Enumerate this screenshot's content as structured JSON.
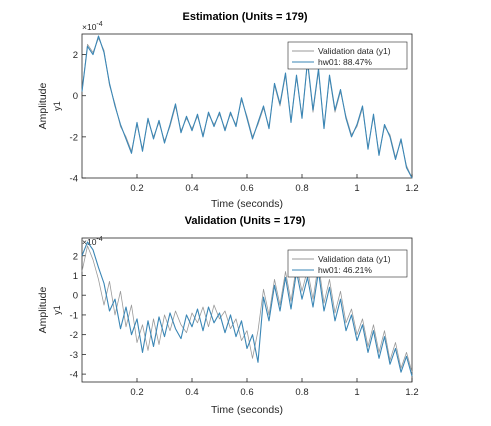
{
  "colors": {
    "validation": "#9a9a9a",
    "model": "#3a86b5",
    "axis": "#262626"
  },
  "chart_data": [
    {
      "type": "line",
      "title": "Estimation (Units = 179)",
      "xlabel": "Time (seconds)",
      "ylabel": "Amplitude",
      "ysublabel": "y1",
      "exponent_base": "×10",
      "exponent_power": "-4",
      "xlim": [
        0,
        1.2
      ],
      "ylim": [
        -4,
        3
      ],
      "xticks": [
        0.2,
        0.4,
        0.6,
        0.8,
        1,
        1.2
      ],
      "xtick_labels": [
        "0.2",
        "0.4",
        "0.6",
        "0.8",
        "1",
        "1.2"
      ],
      "yticks": [
        -4,
        -2,
        0,
        2
      ],
      "ytick_labels": [
        "-4",
        "-2",
        "0",
        "2"
      ],
      "legend_position": "top-right",
      "x": [
        0,
        0.02,
        0.04,
        0.06,
        0.08,
        0.1,
        0.12,
        0.14,
        0.16,
        0.18,
        0.2,
        0.22,
        0.24,
        0.26,
        0.28,
        0.3,
        0.32,
        0.34,
        0.36,
        0.38,
        0.4,
        0.42,
        0.44,
        0.46,
        0.48,
        0.5,
        0.52,
        0.54,
        0.56,
        0.58,
        0.6,
        0.62,
        0.64,
        0.66,
        0.68,
        0.7,
        0.72,
        0.74,
        0.76,
        0.78,
        0.8,
        0.82,
        0.84,
        0.86,
        0.88,
        0.9,
        0.92,
        0.94,
        0.96,
        0.98,
        1.0,
        1.02,
        1.04,
        1.06,
        1.08,
        1.1,
        1.12,
        1.14,
        1.16,
        1.18,
        1.2
      ],
      "series": [
        {
          "name": "Validation data (y1)",
          "values": [
            0.2,
            2.5,
            2.1,
            2.8,
            2.2,
            0.5,
            -0.4,
            -1.5,
            -2.0,
            -2.7,
            -1.4,
            -2.6,
            -1.2,
            -2.0,
            -1.3,
            -2.2,
            -1.5,
            -0.5,
            -1.7,
            -1.1,
            -1.6,
            -1.0,
            -1.9,
            -0.9,
            -1.4,
            -0.9,
            -1.6,
            -0.9,
            -1.4,
            -0.2,
            -1.0,
            -2.0,
            -1.4,
            -0.6,
            -1.5,
            0.5,
            -0.5,
            1.0,
            -1.2,
            0.9,
            -1.0,
            1.6,
            -0.8,
            1.2,
            -1.5,
            0.9,
            -0.8,
            0.2,
            -1.0,
            -1.9,
            -1.5,
            -0.6,
            -2.5,
            -1.0,
            -2.8,
            -1.5,
            -1.9,
            -3.0,
            -2.2,
            -3.4,
            -4.0
          ]
        },
        {
          "name": "hw01: 88.47%",
          "values": [
            0.2,
            2.4,
            2.0,
            2.9,
            2.1,
            0.6,
            -0.5,
            -1.4,
            -2.1,
            -2.8,
            -1.3,
            -2.7,
            -1.1,
            -2.1,
            -1.2,
            -2.3,
            -1.4,
            -0.4,
            -1.8,
            -1.0,
            -1.7,
            -0.9,
            -2.0,
            -0.8,
            -1.5,
            -0.8,
            -1.7,
            -0.8,
            -1.5,
            -0.1,
            -1.1,
            -2.1,
            -1.3,
            -0.5,
            -1.6,
            0.6,
            -0.4,
            1.1,
            -1.3,
            1.0,
            -1.1,
            1.7,
            -0.7,
            1.3,
            -1.6,
            1.0,
            -0.7,
            0.3,
            -1.1,
            -2.0,
            -1.4,
            -0.5,
            -2.6,
            -0.9,
            -2.9,
            -1.4,
            -2.0,
            -3.1,
            -2.1,
            -3.5,
            -4.0
          ]
        }
      ]
    },
    {
      "type": "line",
      "title": "Validation (Units = 179)",
      "xlabel": "Time (seconds)",
      "ylabel": "Amplitude",
      "ysublabel": "y1",
      "exponent_base": "×10",
      "exponent_power": "-4",
      "xlim": [
        0,
        1.2
      ],
      "ylim": [
        -4.4,
        2.9
      ],
      "xticks": [
        0.2,
        0.4,
        0.6,
        0.8,
        1,
        1.2
      ],
      "xtick_labels": [
        "0.2",
        "0.4",
        "0.6",
        "0.8",
        "1",
        "1.2"
      ],
      "yticks": [
        -4,
        -3,
        -2,
        -1,
        0,
        1,
        2
      ],
      "ytick_labels": [
        "-4",
        "-3",
        "-2",
        "-1",
        "0",
        "1",
        "2"
      ],
      "legend_position": "top-right",
      "x": [
        0,
        0.02,
        0.04,
        0.06,
        0.08,
        0.1,
        0.12,
        0.14,
        0.16,
        0.18,
        0.2,
        0.22,
        0.24,
        0.26,
        0.28,
        0.3,
        0.32,
        0.34,
        0.36,
        0.38,
        0.4,
        0.42,
        0.44,
        0.46,
        0.48,
        0.5,
        0.52,
        0.54,
        0.56,
        0.58,
        0.6,
        0.62,
        0.64,
        0.66,
        0.68,
        0.7,
        0.72,
        0.74,
        0.76,
        0.78,
        0.8,
        0.82,
        0.84,
        0.86,
        0.88,
        0.9,
        0.92,
        0.94,
        0.96,
        0.98,
        1.0,
        1.02,
        1.04,
        1.06,
        1.08,
        1.1,
        1.12,
        1.14,
        1.16,
        1.18,
        1.2
      ],
      "series": [
        {
          "name": "Validation data (y1)",
          "values": [
            1.2,
            2.5,
            1.8,
            0.8,
            -0.5,
            0.7,
            -1.0,
            0.2,
            -1.6,
            -0.5,
            -2.4,
            -1.5,
            -2.8,
            -1.2,
            -2.5,
            -1.0,
            -1.8,
            -0.8,
            -1.5,
            -1.9,
            -0.9,
            -1.4,
            -0.6,
            -1.6,
            -0.5,
            -1.2,
            -0.8,
            -1.7,
            -1.2,
            -2.3,
            -1.8,
            -3.2,
            -1.8,
            0.3,
            -1.0,
            0.8,
            -0.5,
            1.2,
            -0.3,
            1.5,
            0.2,
            1.3,
            -0.2,
            1.6,
            -0.4,
            0.8,
            -0.9,
            0.2,
            -1.4,
            -0.7,
            -2.0,
            -1.2,
            -2.6,
            -1.5,
            -2.9,
            -1.8,
            -3.3,
            -2.4,
            -3.7,
            -2.9,
            -3.9
          ]
        },
        {
          "name": "hw01: 46.21%",
          "values": [
            2.0,
            2.7,
            2.3,
            1.4,
            0.6,
            -0.8,
            -0.2,
            -1.7,
            -0.6,
            -2.0,
            -1.2,
            -2.9,
            -1.3,
            -2.6,
            -1.1,
            -2.1,
            -0.9,
            -1.7,
            -2.2,
            -1.0,
            -1.6,
            -0.7,
            -1.8,
            -0.6,
            -1.4,
            -0.9,
            -1.9,
            -1.0,
            -2.1,
            -1.3,
            -2.7,
            -2.0,
            -3.4,
            -0.1,
            -1.3,
            0.5,
            -0.8,
            0.9,
            -0.7,
            1.2,
            -0.2,
            0.9,
            -0.6,
            1.2,
            -0.8,
            0.4,
            -1.3,
            -0.2,
            -1.8,
            -1.0,
            -2.3,
            -1.5,
            -2.9,
            -1.8,
            -3.2,
            -2.1,
            -3.5,
            -2.7,
            -3.9,
            -3.1,
            -4.1
          ]
        }
      ]
    }
  ]
}
